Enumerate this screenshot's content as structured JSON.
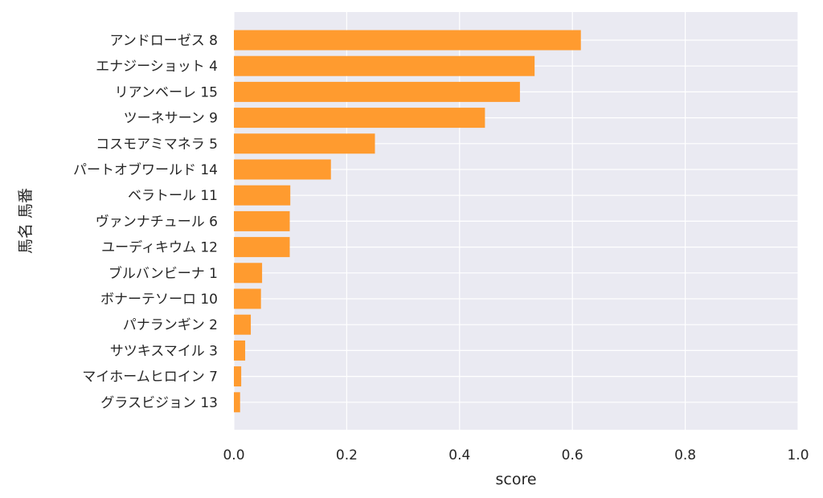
{
  "chart_data": {
    "type": "bar",
    "orientation": "horizontal",
    "categories": [
      "アンドローゼス 8",
      "エナジーショット 4",
      "リアンベーレ 15",
      "ツーネサーン 9",
      "コスモアミマネラ 5",
      "パートオブワールド 14",
      "ベラトール 11",
      "ヴァンナチュール 6",
      "ユーディキウム 12",
      "ブルバンビーナ 1",
      "ボナーテソーロ 10",
      "パナランギン 2",
      "サツキスマイル 3",
      "マイホームヒロイン 7",
      "グラスビジョン 13"
    ],
    "values": [
      0.615,
      0.533,
      0.507,
      0.445,
      0.25,
      0.172,
      0.1,
      0.099,
      0.099,
      0.05,
      0.048,
      0.03,
      0.02,
      0.013,
      0.011
    ],
    "xlabel": "score",
    "ylabel": "馬名 馬番",
    "xlim": [
      0,
      1.0
    ],
    "xticks": [
      "0.0",
      "0.2",
      "0.4",
      "0.6",
      "0.8",
      "1.0"
    ],
    "grid": true,
    "colors": {
      "bar": "#ff9b2f",
      "background": "#eaeaf2",
      "grid": "#ffffff"
    }
  }
}
